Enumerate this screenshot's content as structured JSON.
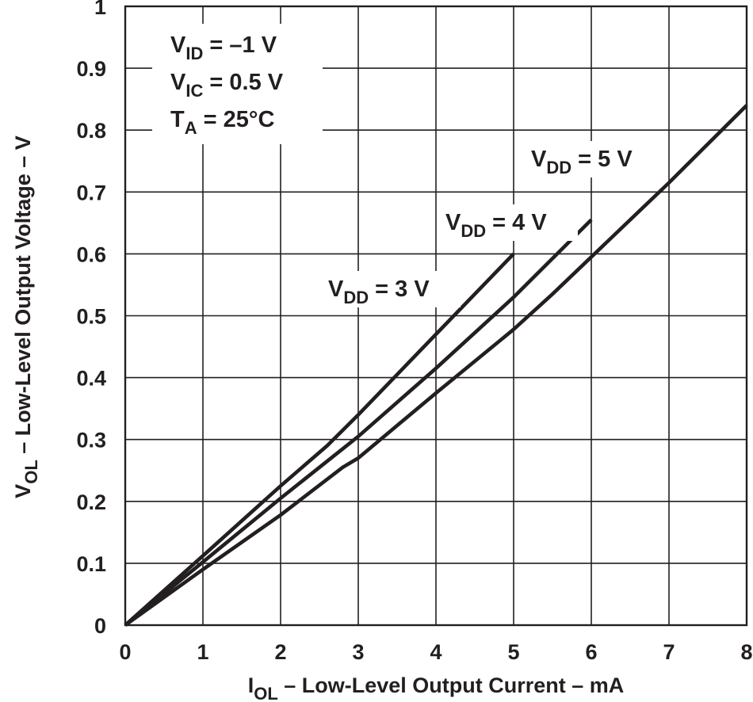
{
  "chart_data": {
    "type": "line",
    "title": "",
    "xlabel": {
      "main": "I",
      "sub": "OL",
      "rest": " – Low-Level Output Current – mA"
    },
    "ylabel": {
      "main": "V",
      "sub": "OL",
      "rest": " – Low-Level Output Voltage – V"
    },
    "xlim": [
      0,
      8
    ],
    "ylim": [
      0,
      1
    ],
    "x_ticks": [
      "0",
      "1",
      "2",
      "3",
      "4",
      "5",
      "6",
      "7",
      "8"
    ],
    "y_ticks": [
      "0",
      "0.1",
      "0.2",
      "0.3",
      "0.4",
      "0.5",
      "0.6",
      "0.7",
      "0.8",
      "0.9",
      "1"
    ],
    "grid": true,
    "conditions": [
      {
        "main": "V",
        "sub": "ID",
        "rest": " = –1 V"
      },
      {
        "main": "V",
        "sub": "IC",
        "rest": " = 0.5 V"
      },
      {
        "main": "T",
        "sub": "A",
        "rest": " = 25°C"
      }
    ],
    "series": [
      {
        "label": {
          "main": "V",
          "sub": "DD",
          "rest": " = 3 V"
        },
        "x": [
          0,
          1,
          2,
          2.6,
          3,
          4,
          5
        ],
        "y": [
          0,
          0.112,
          0.225,
          0.29,
          0.34,
          0.47,
          0.6
        ]
      },
      {
        "label": {
          "main": "V",
          "sub": "DD",
          "rest": " = 4 V"
        },
        "x": [
          0,
          1,
          2,
          2.8,
          3,
          4,
          5,
          6
        ],
        "y": [
          0,
          0.102,
          0.205,
          0.285,
          0.305,
          0.415,
          0.53,
          0.655
        ]
      },
      {
        "label": {
          "main": "V",
          "sub": "DD",
          "rest": " = 5 V"
        },
        "x": [
          0,
          1,
          2,
          2.8,
          3,
          4,
          5,
          5.5,
          6,
          7,
          8
        ],
        "y": [
          0,
          0.09,
          0.178,
          0.255,
          0.27,
          0.375,
          0.478,
          0.535,
          0.595,
          0.715,
          0.84
        ]
      }
    ]
  }
}
